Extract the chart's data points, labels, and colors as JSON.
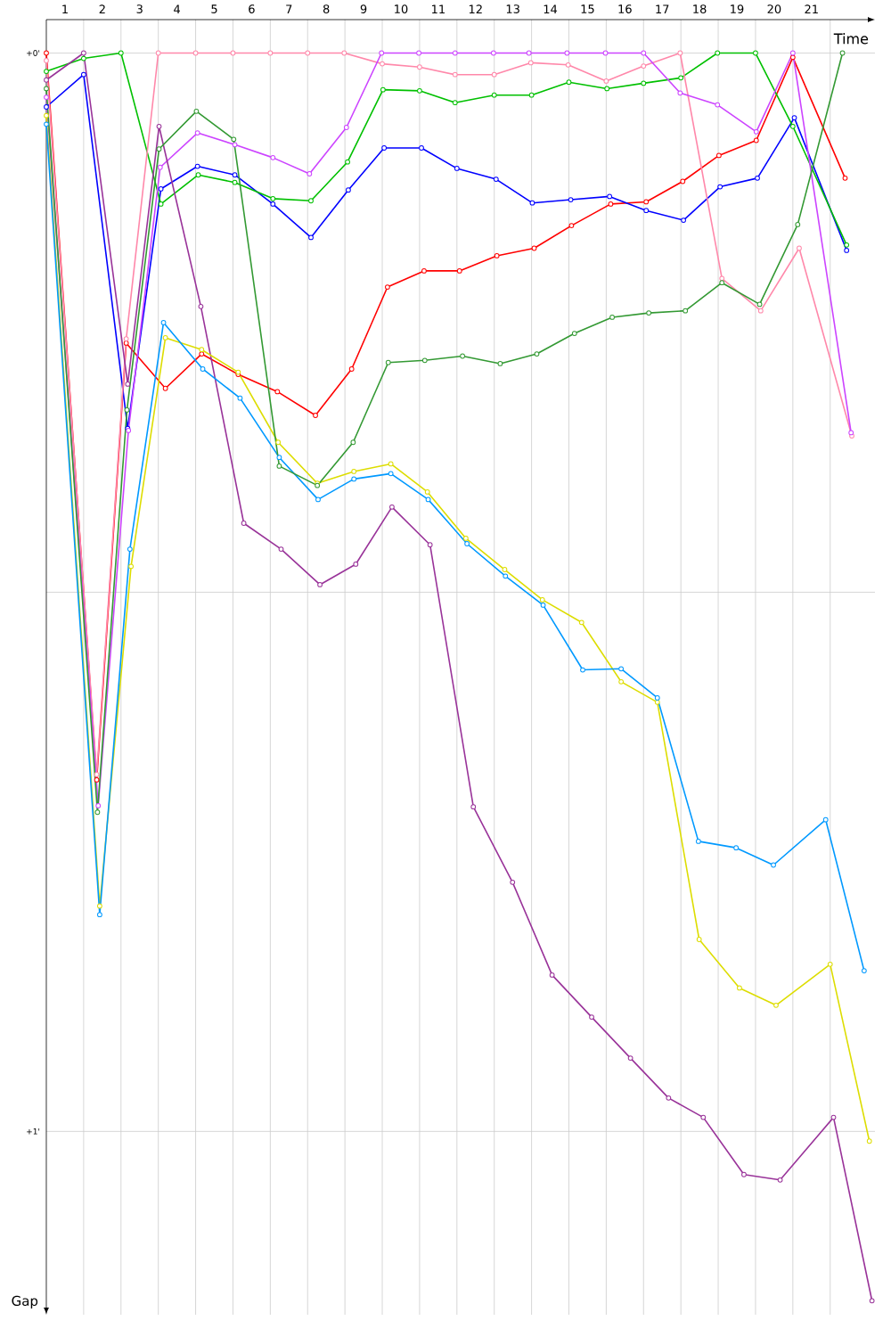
{
  "chart_data": {
    "type": "line",
    "xlabel": "Time",
    "ylabel": "Gap",
    "xlim": [
      0.5,
      22.7
    ],
    "ylim": [
      1.17,
      -0.031
    ],
    "xticks": [
      1,
      {
        "value": 1.5,
        "label": null
      },
      2,
      {
        "value": 2.5,
        "label": null
      },
      3,
      {
        "value": 3.5,
        "label": null
      },
      4,
      {
        "value": 4.5,
        "label": null
      },
      5,
      {
        "value": 5.5,
        "label": null
      },
      6,
      {
        "value": 6.5,
        "label": null
      },
      7,
      {
        "value": 7.5,
        "label": null
      },
      8,
      {
        "value": 8.5,
        "label": null
      },
      9,
      {
        "value": 9.5,
        "label": null
      },
      10,
      {
        "value": 10.5,
        "label": null
      },
      11,
      {
        "value": 11.5,
        "label": null
      },
      12,
      {
        "value": 12.5,
        "label": null
      },
      13,
      {
        "value": 13.5,
        "label": null
      },
      14,
      {
        "value": 14.5,
        "label": null
      },
      15,
      {
        "value": 15.5,
        "label": null
      },
      16,
      {
        "value": 16.5,
        "label": null
      },
      17,
      {
        "value": 17.5,
        "label": null
      },
      18,
      {
        "value": 18.5,
        "label": null
      },
      19,
      {
        "value": 19.5,
        "label": null
      },
      20,
      {
        "value": 20.5,
        "label": null
      },
      21,
      {
        "value": 21.5,
        "label": null
      }
    ],
    "yticks": [
      {
        "value": 0,
        "label": "+0'"
      },
      {
        "value": 0.5,
        "label": null
      },
      {
        "value": 1,
        "label": "+1'"
      }
    ],
    "grid": true,
    "marker": "circle",
    "line_style": "solid",
    "series": [
      {
        "color": "#ff0000",
        "x": [
          0.5,
          1.85,
          2.64,
          3.69,
          4.66,
          5.64,
          6.69,
          7.71,
          8.68,
          9.64,
          10.62,
          11.57,
          12.57,
          13.57,
          14.57,
          15.62,
          16.57,
          17.55,
          18.52,
          19.52,
          20.5,
          21.9
        ],
        "values": [
          0,
          0.674,
          0.269,
          0.311,
          0.279,
          0.298,
          0.314,
          0.336,
          0.293,
          0.217,
          0.202,
          0.202,
          0.188,
          0.181,
          0.16,
          0.14,
          0.138,
          0.119,
          0.095,
          0.081,
          0.004,
          0.116
        ]
      },
      {
        "color": "#0000ff",
        "x": [
          0.5,
          1.5,
          2.68,
          3.57,
          4.55,
          5.55,
          6.57,
          7.59,
          8.59,
          9.55,
          10.55,
          11.5,
          12.55,
          13.52,
          14.55,
          15.59,
          16.57,
          17.57,
          18.55,
          19.55,
          20.54,
          21.94
        ],
        "values": [
          0.05,
          0.02,
          0.348,
          0.126,
          0.105,
          0.113,
          0.14,
          0.171,
          0.127,
          0.088,
          0.088,
          0.107,
          0.117,
          0.139,
          0.136,
          0.133,
          0.146,
          0.155,
          0.124,
          0.116,
          0.06,
          0.183
        ]
      },
      {
        "color": "#00c000",
        "x": [
          0.5,
          1.5,
          2.5,
          3.57,
          4.57,
          5.55,
          6.57,
          7.59,
          8.57,
          9.52,
          10.5,
          11.45,
          12.5,
          13.5,
          14.5,
          15.52,
          16.5,
          17.5,
          18.48,
          19.5,
          20.5,
          21.94
        ],
        "values": [
          0.017,
          0.005,
          0,
          0.14,
          0.113,
          0.12,
          0.135,
          0.137,
          0.101,
          0.034,
          0.035,
          0.046,
          0.039,
          0.039,
          0.027,
          0.033,
          0.028,
          0.023,
          0,
          0,
          0.068,
          0.178
        ]
      },
      {
        "color": "#ff88aa",
        "x": [
          0.5,
          1.85,
          2.64,
          3.5,
          4.5,
          5.5,
          6.5,
          7.5,
          8.48,
          9.5,
          10.5,
          11.45,
          12.5,
          13.48,
          14.48,
          15.5,
          16.5,
          17.48,
          18.6,
          19.64,
          20.67,
          22.08
        ],
        "values": [
          0.007,
          0.669,
          0.265,
          0,
          0,
          0,
          0,
          0,
          0,
          0.01,
          0.013,
          0.02,
          0.02,
          0.009,
          0.011,
          0.026,
          0.012,
          0,
          0.209,
          0.239,
          0.181,
          0.355
        ]
      },
      {
        "color": "#cc44ff",
        "x": [
          0.5,
          1.89,
          2.7,
          3.55,
          4.55,
          5.55,
          6.57,
          7.55,
          8.54,
          9.48,
          10.48,
          11.45,
          12.48,
          13.43,
          14.45,
          15.48,
          16.5,
          17.48,
          18.48,
          19.52,
          20.5,
          22.06
        ],
        "values": [
          0.041,
          0.698,
          0.35,
          0.106,
          0.074,
          0.085,
          0.097,
          0.112,
          0.069,
          0,
          0,
          0,
          0,
          0,
          0,
          0,
          0,
          0.037,
          0.048,
          0.073,
          0,
          0.352
        ]
      },
      {
        "color": "#993399",
        "x": [
          0.5,
          1.5,
          2.68,
          3.52,
          4.64,
          5.79,
          6.79,
          7.83,
          8.79,
          9.76,
          10.78,
          11.94,
          12.99,
          14.05,
          15.11,
          16.15,
          17.17,
          18.1,
          19.19,
          20.16,
          21.59,
          22.62
        ],
        "values": [
          0.025,
          0,
          0.307,
          0.068,
          0.235,
          0.436,
          0.46,
          0.493,
          0.474,
          0.421,
          0.456,
          0.699,
          0.769,
          0.855,
          0.894,
          0.932,
          0.969,
          0.987,
          1.04,
          1.045,
          0.987,
          1.157
        ]
      },
      {
        "color": "#dddd00",
        "x": [
          0.5,
          1.93,
          2.77,
          3.69,
          4.66,
          5.64,
          6.71,
          7.76,
          8.74,
          9.73,
          10.71,
          11.74,
          12.78,
          13.79,
          14.84,
          15.9,
          16.87,
          17.99,
          19.07,
          20.05,
          21.5,
          22.55
        ],
        "values": [
          0.058,
          0.791,
          0.476,
          0.264,
          0.275,
          0.296,
          0.361,
          0.399,
          0.388,
          0.381,
          0.407,
          0.45,
          0.479,
          0.507,
          0.528,
          0.583,
          0.602,
          0.822,
          0.867,
          0.883,
          0.845,
          1.009
        ]
      },
      {
        "color": "#0099ff",
        "x": [
          0.5,
          1.93,
          2.74,
          3.64,
          4.69,
          5.69,
          6.74,
          7.78,
          8.74,
          9.73,
          10.73,
          11.77,
          12.8,
          13.81,
          14.87,
          15.9,
          16.87,
          17.97,
          18.98,
          19.98,
          21.38,
          22.41
        ],
        "values": [
          0.066,
          0.799,
          0.46,
          0.25,
          0.293,
          0.32,
          0.375,
          0.414,
          0.395,
          0.39,
          0.414,
          0.455,
          0.485,
          0.512,
          0.572,
          0.571,
          0.598,
          0.731,
          0.737,
          0.753,
          0.711,
          0.851
        ]
      },
      {
        "color": "#339933",
        "x": [
          0.5,
          1.87,
          2.66,
          3.52,
          4.52,
          5.52,
          6.74,
          7.76,
          8.72,
          9.66,
          10.64,
          11.65,
          12.66,
          13.64,
          14.65,
          15.66,
          16.64,
          17.62,
          18.6,
          19.61,
          20.63,
          21.83
        ],
        "values": [
          0.033,
          0.704,
          0.331,
          0.089,
          0.054,
          0.08,
          0.383,
          0.401,
          0.361,
          0.287,
          0.285,
          0.281,
          0.288,
          0.279,
          0.26,
          0.245,
          0.241,
          0.239,
          0.213,
          0.233,
          0.159,
          0
        ]
      }
    ]
  }
}
